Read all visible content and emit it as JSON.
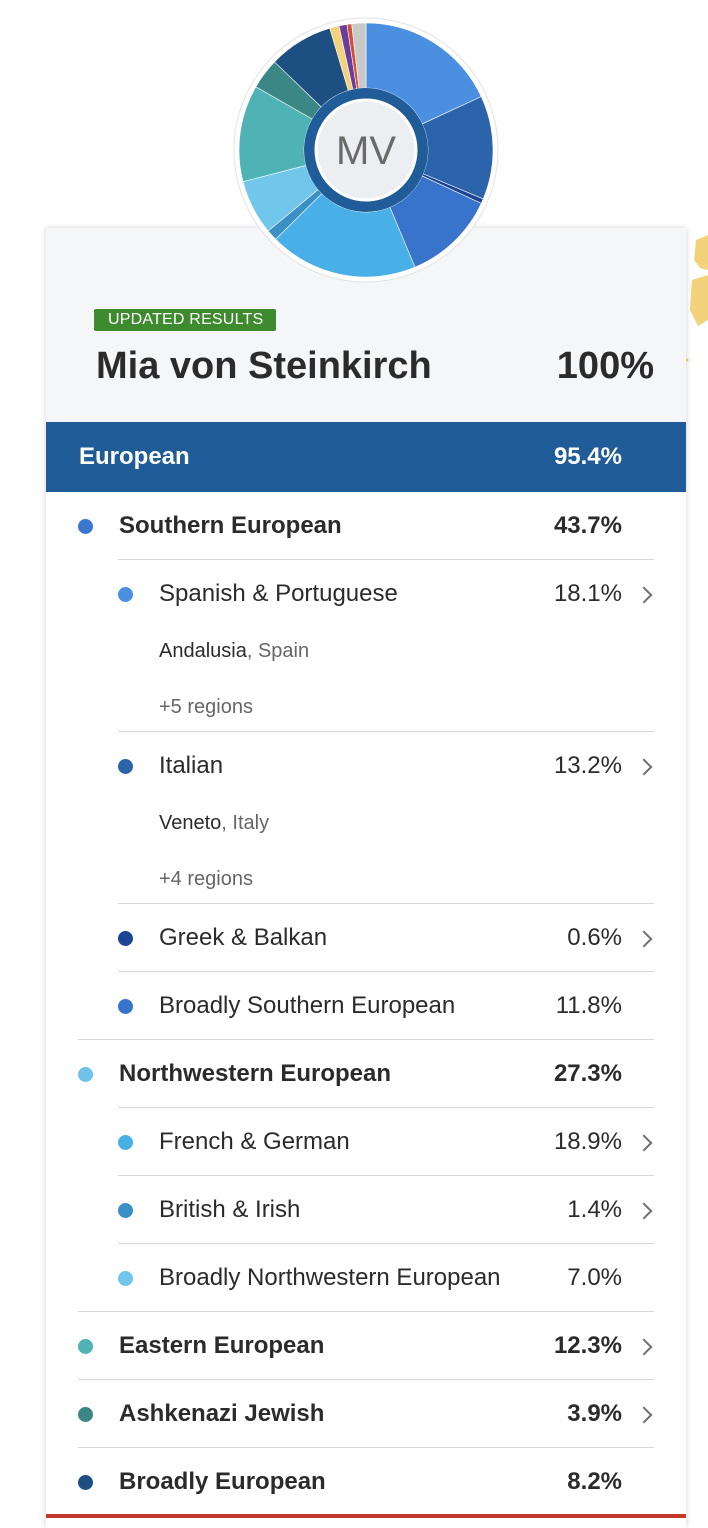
{
  "header": {
    "badge": "UPDATED RESULTS",
    "name": "Mia von Steinkirch",
    "total": "100%",
    "initials": "MV"
  },
  "category": {
    "label": "European",
    "percent": "95.4%"
  },
  "rows": [
    {
      "label": "Southern European",
      "percent": "43.7%",
      "color": "#3a78cf",
      "level": 1,
      "chevron": false
    },
    {
      "label": "Spanish & Portuguese",
      "percent": "18.1%",
      "color": "#4a8fe0",
      "level": 2,
      "chevron": true,
      "detail_place": "Andalusia",
      "detail_region": ", Spain",
      "more": "+5 regions"
    },
    {
      "label": "Italian",
      "percent": "13.2%",
      "color": "#2b64aa",
      "level": 2,
      "chevron": true,
      "detail_place": "Veneto",
      "detail_region": ", Italy",
      "more": "+4 regions"
    },
    {
      "label": "Greek & Balkan",
      "percent": "0.6%",
      "color": "#1c4594",
      "level": 2,
      "chevron": true
    },
    {
      "label": "Broadly Southern European",
      "percent": "11.8%",
      "color": "#3873cc",
      "level": 2,
      "chevron": false
    },
    {
      "label": "Northwestern European",
      "percent": "27.3%",
      "color": "#6fc3ea",
      "level": 1,
      "chevron": false
    },
    {
      "label": "French & German",
      "percent": "18.9%",
      "color": "#48b0e6",
      "level": 2,
      "chevron": true
    },
    {
      "label": "British & Irish",
      "percent": "1.4%",
      "color": "#3a8fc4",
      "level": 2,
      "chevron": true
    },
    {
      "label": "Broadly Northwestern European",
      "percent": "7.0%",
      "color": "#71c6ec",
      "level": 2,
      "chevron": false
    },
    {
      "label": "Eastern European",
      "percent": "12.3%",
      "color": "#4fb3b5",
      "level": 1,
      "chevron": true
    },
    {
      "label": "Ashkenazi Jewish",
      "percent": "3.9%",
      "color": "#3b8786",
      "level": 1,
      "chevron": true
    },
    {
      "label": "Broadly European",
      "percent": "8.2%",
      "color": "#1d4f82",
      "level": 1,
      "chevron": false
    }
  ],
  "donut": {
    "segments": [
      {
        "name": "Spanish & Portuguese",
        "value": 18.1,
        "color": "#4a8fe0"
      },
      {
        "name": "Italian",
        "value": 13.2,
        "color": "#2b64aa"
      },
      {
        "name": "Greek & Balkan",
        "value": 0.6,
        "color": "#1c4594"
      },
      {
        "name": "Broadly Southern European",
        "value": 11.8,
        "color": "#3873cc"
      },
      {
        "name": "French & German",
        "value": 18.9,
        "color": "#48b0e6"
      },
      {
        "name": "British & Irish",
        "value": 1.4,
        "color": "#3a8fc4"
      },
      {
        "name": "Broadly Northwestern European",
        "value": 7.0,
        "color": "#71c6ec"
      },
      {
        "name": "Eastern European",
        "value": 12.3,
        "color": "#4fb3b5"
      },
      {
        "name": "Ashkenazi Jewish",
        "value": 3.9,
        "color": "#3b8786"
      },
      {
        "name": "Broadly European",
        "value": 8.2,
        "color": "#1d4f82"
      },
      {
        "name": "other-yellow",
        "value": 1.2,
        "color": "#f2d27a"
      },
      {
        "name": "other-purple",
        "value": 1.0,
        "color": "#6a3d9a"
      },
      {
        "name": "other-red",
        "value": 0.6,
        "color": "#d0503c"
      },
      {
        "name": "other-gray",
        "value": 1.8,
        "color": "#c9c9c9"
      }
    ]
  }
}
